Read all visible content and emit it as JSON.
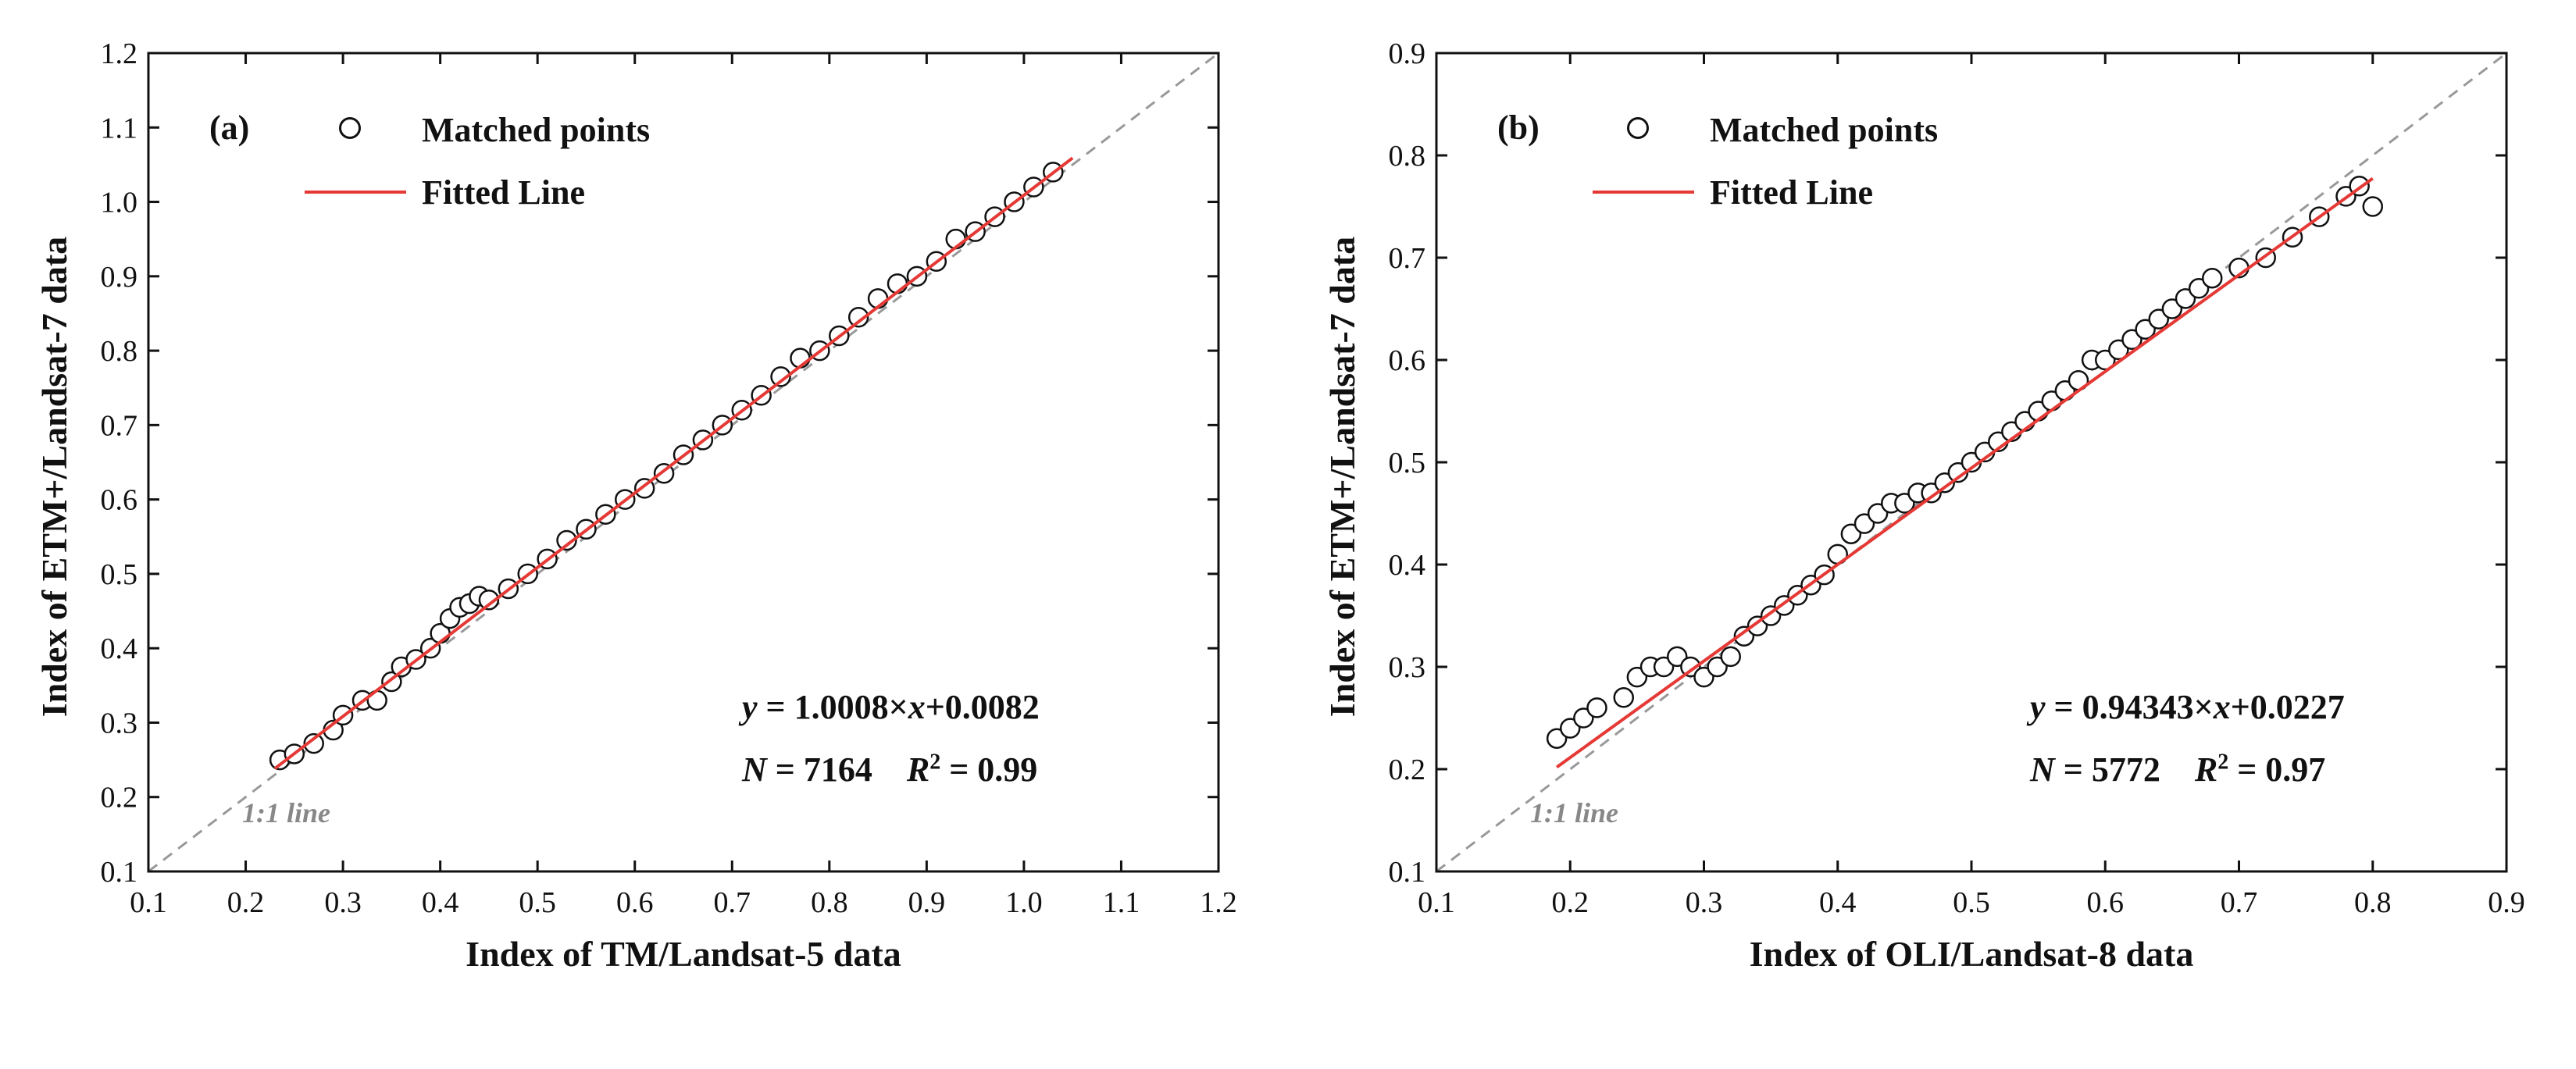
{
  "chart_data": [
    {
      "type": "scatter",
      "panel_label": "(a)",
      "xlabel": "Index of TM/Landsat-5 data",
      "ylabel": "Index of ETM+/Landsat-7 data",
      "xlim": [
        0.1,
        1.2
      ],
      "ylim": [
        0.1,
        1.2
      ],
      "xticks": [
        "0.1",
        "0.2",
        "0.3",
        "0.4",
        "0.5",
        "0.6",
        "0.7",
        "0.8",
        "0.9",
        "1.0",
        "1.1",
        "1.2"
      ],
      "yticks": [
        "0.1",
        "0.2",
        "0.3",
        "0.4",
        "0.5",
        "0.6",
        "0.7",
        "0.8",
        "0.9",
        "1.0",
        "1.1",
        "1.2"
      ],
      "legend": {
        "points": "Matched points",
        "line": "Fitted Line",
        "position": "top-left"
      },
      "fit": {
        "slope": 1.0008,
        "intercept": 0.0082,
        "x_range": [
          0.23,
          1.05
        ]
      },
      "equation_text": {
        "y": "y",
        "mid": " = 1.0008×",
        "x": "x",
        "tail": "+0.0082"
      },
      "stats_text": {
        "n_label": "N",
        "n_value": " = 7164",
        "r_label": "R",
        "r_sup": "2",
        "r_value": " = 0.99"
      },
      "identity_label": "1:1 line",
      "points": [
        [
          0.235,
          0.25
        ],
        [
          0.25,
          0.258
        ],
        [
          0.27,
          0.272
        ],
        [
          0.29,
          0.29
        ],
        [
          0.3,
          0.31
        ],
        [
          0.32,
          0.33
        ],
        [
          0.335,
          0.33
        ],
        [
          0.35,
          0.355
        ],
        [
          0.36,
          0.375
        ],
        [
          0.375,
          0.385
        ],
        [
          0.39,
          0.4
        ],
        [
          0.4,
          0.42
        ],
        [
          0.41,
          0.44
        ],
        [
          0.42,
          0.455
        ],
        [
          0.43,
          0.46
        ],
        [
          0.44,
          0.47
        ],
        [
          0.45,
          0.465
        ],
        [
          0.47,
          0.48
        ],
        [
          0.49,
          0.5
        ],
        [
          0.51,
          0.52
        ],
        [
          0.53,
          0.545
        ],
        [
          0.55,
          0.56
        ],
        [
          0.57,
          0.58
        ],
        [
          0.59,
          0.6
        ],
        [
          0.61,
          0.615
        ],
        [
          0.63,
          0.635
        ],
        [
          0.65,
          0.66
        ],
        [
          0.67,
          0.68
        ],
        [
          0.69,
          0.7
        ],
        [
          0.71,
          0.72
        ],
        [
          0.73,
          0.74
        ],
        [
          0.75,
          0.765
        ],
        [
          0.77,
          0.79
        ],
        [
          0.79,
          0.8
        ],
        [
          0.81,
          0.82
        ],
        [
          0.83,
          0.845
        ],
        [
          0.85,
          0.87
        ],
        [
          0.87,
          0.89
        ],
        [
          0.89,
          0.9
        ],
        [
          0.91,
          0.92
        ],
        [
          0.93,
          0.95
        ],
        [
          0.95,
          0.96
        ],
        [
          0.97,
          0.98
        ],
        [
          0.99,
          1.0
        ],
        [
          1.01,
          1.02
        ],
        [
          1.03,
          1.04
        ]
      ]
    },
    {
      "type": "scatter",
      "panel_label": "(b)",
      "xlabel": "Index of OLI/Landsat-8 data",
      "ylabel": "Index of ETM+/Landsat-7 data",
      "xlim": [
        0.1,
        0.9
      ],
      "ylim": [
        0.1,
        0.9
      ],
      "xticks": [
        "0.1",
        "0.2",
        "0.3",
        "0.4",
        "0.5",
        "0.6",
        "0.7",
        "0.8",
        "0.9"
      ],
      "yticks": [
        "0.1",
        "0.2",
        "0.3",
        "0.4",
        "0.5",
        "0.6",
        "0.7",
        "0.8",
        "0.9"
      ],
      "legend": {
        "points": "Matched points",
        "line": "Fitted Line",
        "position": "top-left"
      },
      "fit": {
        "slope": 0.94343,
        "intercept": 0.0227,
        "x_range": [
          0.19,
          0.8
        ]
      },
      "equation_text": {
        "y": "y",
        "mid": " = 0.94343×",
        "x": "x",
        "tail": "+0.0227"
      },
      "stats_text": {
        "n_label": "N",
        "n_value": " = 5772",
        "r_label": "R",
        "r_sup": "2",
        "r_value": " = 0.97"
      },
      "identity_label": "1:1 line",
      "points": [
        [
          0.19,
          0.23
        ],
        [
          0.2,
          0.24
        ],
        [
          0.21,
          0.25
        ],
        [
          0.22,
          0.26
        ],
        [
          0.24,
          0.27
        ],
        [
          0.25,
          0.29
        ],
        [
          0.26,
          0.3
        ],
        [
          0.27,
          0.3
        ],
        [
          0.28,
          0.31
        ],
        [
          0.29,
          0.3
        ],
        [
          0.3,
          0.29
        ],
        [
          0.31,
          0.3
        ],
        [
          0.32,
          0.31
        ],
        [
          0.33,
          0.33
        ],
        [
          0.34,
          0.34
        ],
        [
          0.35,
          0.35
        ],
        [
          0.36,
          0.36
        ],
        [
          0.37,
          0.37
        ],
        [
          0.38,
          0.38
        ],
        [
          0.39,
          0.39
        ],
        [
          0.4,
          0.41
        ],
        [
          0.41,
          0.43
        ],
        [
          0.42,
          0.44
        ],
        [
          0.43,
          0.45
        ],
        [
          0.44,
          0.46
        ],
        [
          0.45,
          0.46
        ],
        [
          0.46,
          0.47
        ],
        [
          0.47,
          0.47
        ],
        [
          0.48,
          0.48
        ],
        [
          0.49,
          0.49
        ],
        [
          0.5,
          0.5
        ],
        [
          0.51,
          0.51
        ],
        [
          0.52,
          0.52
        ],
        [
          0.53,
          0.53
        ],
        [
          0.54,
          0.54
        ],
        [
          0.55,
          0.55
        ],
        [
          0.56,
          0.56
        ],
        [
          0.57,
          0.57
        ],
        [
          0.58,
          0.58
        ],
        [
          0.59,
          0.6
        ],
        [
          0.6,
          0.6
        ],
        [
          0.61,
          0.61
        ],
        [
          0.62,
          0.62
        ],
        [
          0.63,
          0.63
        ],
        [
          0.64,
          0.64
        ],
        [
          0.65,
          0.65
        ],
        [
          0.66,
          0.66
        ],
        [
          0.67,
          0.67
        ],
        [
          0.68,
          0.68
        ],
        [
          0.7,
          0.69
        ],
        [
          0.72,
          0.7
        ],
        [
          0.74,
          0.72
        ],
        [
          0.76,
          0.74
        ],
        [
          0.78,
          0.76
        ],
        [
          0.79,
          0.77
        ],
        [
          0.8,
          0.75
        ]
      ]
    }
  ]
}
